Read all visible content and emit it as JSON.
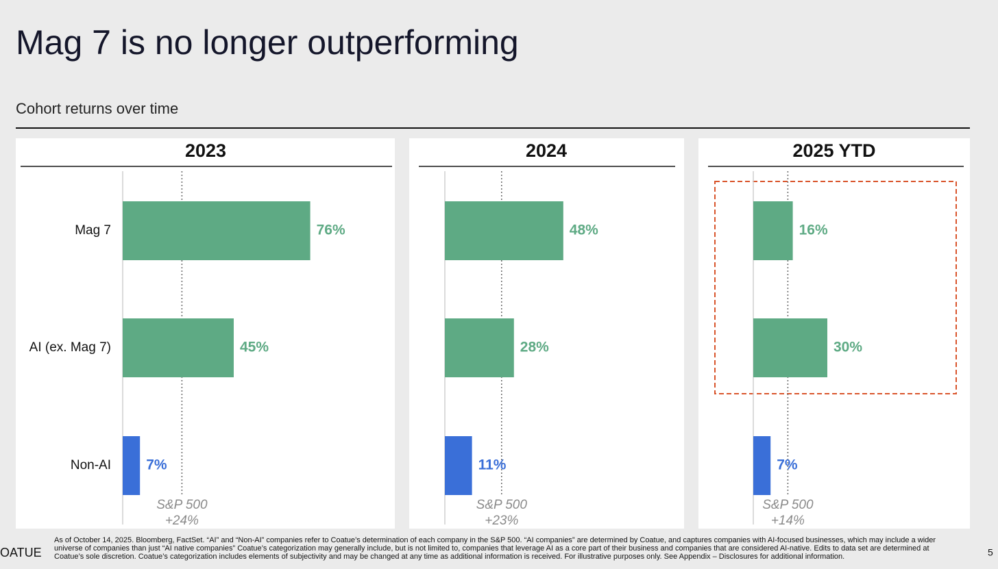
{
  "title": "Mag 7 is no longer outperforming",
  "subtitle": "Cohort returns over time",
  "chart_data": [
    {
      "type": "bar",
      "orientation": "horizontal",
      "title": "2023",
      "categories": [
        "Mag 7",
        "AI (ex. Mag 7)",
        "Non-AI"
      ],
      "values": [
        76,
        45,
        7
      ],
      "value_labels": [
        "76%",
        "45%",
        "7%"
      ],
      "colors": [
        "#5eaa84",
        "#5eaa84",
        "#3a6fd8"
      ],
      "xlim": [
        0,
        100
      ],
      "reference_line": {
        "label": "S&P 500",
        "value": 24,
        "value_label": "+24%"
      }
    },
    {
      "type": "bar",
      "orientation": "horizontal",
      "title": "2024",
      "values": [
        48,
        28,
        11
      ],
      "value_labels": [
        "48%",
        "28%",
        "11%"
      ],
      "colors": [
        "#5eaa84",
        "#5eaa84",
        "#3a6fd8"
      ],
      "xlim": [
        0,
        100
      ],
      "reference_line": {
        "label": "S&P 500",
        "value": 23,
        "value_label": "+23%"
      }
    },
    {
      "type": "bar",
      "orientation": "horizontal",
      "title": "2025 YTD",
      "values": [
        16,
        30,
        7
      ],
      "value_labels": [
        "16%",
        "30%",
        "7%"
      ],
      "colors": [
        "#5eaa84",
        "#5eaa84",
        "#3a6fd8"
      ],
      "xlim": [
        0,
        100
      ],
      "reference_line": {
        "label": "S&P 500",
        "value": 14,
        "value_label": "+14%"
      }
    }
  ],
  "footnote": "As of October 14, 2025. Bloomberg, FactSet. “AI” and “Non-AI” companies refer to Coatue’s determination of each company in the S&P 500. “AI companies” are determined by Coatue, and captures companies with AI-focused businesses, which may include a wider universe of companies than just “AI native companies”  Coatue’s categorization may generally include, but is not limited to, companies that leverage AI as a core part of their business and companies that are considered AI-native. Edits to data set are determined at Coatue’s sole discretion. Coatue’s categorization includes elements of subjectivity and may be changed at any time as additional information is received. For illustrative purposes only. See Appendix – Disclosures for additional information.",
  "logo": "OATUE",
  "page_number": "5"
}
